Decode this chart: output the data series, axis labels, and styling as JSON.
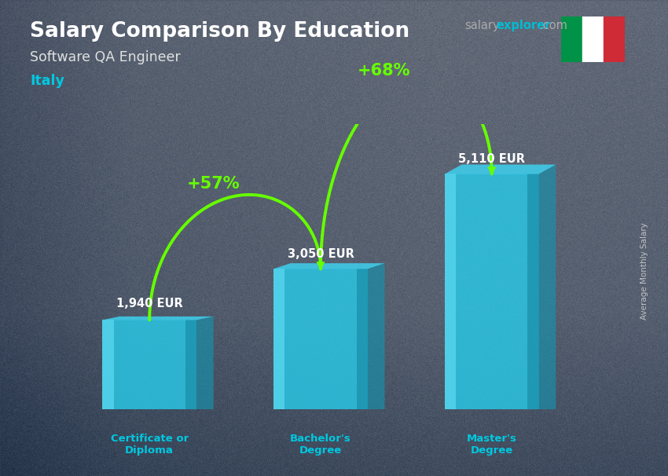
{
  "title": "Salary Comparison By Education",
  "subtitle": "Software QA Engineer",
  "country": "Italy",
  "categories": [
    "Certificate or\nDiploma",
    "Bachelor's\nDegree",
    "Master's\nDegree"
  ],
  "values": [
    1940,
    3050,
    5110
  ],
  "value_labels": [
    "1,940 EUR",
    "3,050 EUR",
    "5,110 EUR"
  ],
  "pct_labels": [
    "+57%",
    "+68%"
  ],
  "bar_color_front": "#29c9e8",
  "bar_color_left": "#5ad8f0",
  "bar_color_right": "#1a8faa",
  "bar_color_top_face": "#3dd5f3",
  "bg_color": "#6b7a8d",
  "overlay_color": "#3a4a5a",
  "overlay_alpha": 0.45,
  "title_color": "#ffffff",
  "subtitle_color": "#e0e0e0",
  "country_color": "#00c8e0",
  "value_label_color": "#ffffff",
  "pct_color": "#66ff00",
  "arrow_color": "#66ff00",
  "category_color": "#00c8e0",
  "site_salary_color": "#aaaaaa",
  "site_explorer_color": "#00bcd4",
  "ylabel_text": "Average Monthly Salary",
  "ylabel_color": "#cccccc",
  "ylim": [
    0,
    6200
  ],
  "bar_width": 0.55,
  "bar_gap": 0.7,
  "fig_width": 8.5,
  "fig_height": 6.06,
  "dpi": 100
}
